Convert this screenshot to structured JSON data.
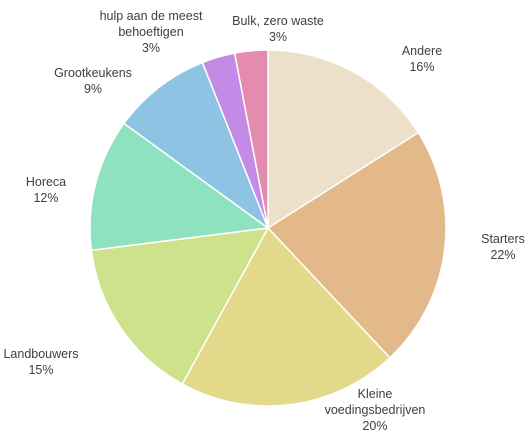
{
  "chart_data": {
    "type": "pie",
    "title": "",
    "start_angle_deg": 0,
    "direction": "clockwise",
    "slices": [
      {
        "label": "Andere",
        "value": 16,
        "value_label": "16%",
        "color": "#EDE0CA"
      },
      {
        "label": "Starters",
        "value": 22,
        "value_label": "22%",
        "color": "#E3B98A"
      },
      {
        "label": "Kleine voedingsbedrijven",
        "value": 20,
        "value_label": "20%",
        "color": "#E2DA8A"
      },
      {
        "label": "Landbouwers",
        "value": 15,
        "value_label": "15%",
        "color": "#CDE28A"
      },
      {
        "label": "Horeca",
        "value": 12,
        "value_label": "12%",
        "color": "#8EE2BF"
      },
      {
        "label": "Grootkeukens",
        "value": 9,
        "value_label": "9%",
        "color": "#8EC3E3"
      },
      {
        "label": "hulp aan de meest behoeftigen",
        "value": 3,
        "value_label": "3%",
        "color": "#C48BE6"
      },
      {
        "label": "Bulk, zero waste",
        "value": 3,
        "value_label": "3%",
        "color": "#E48BAF"
      }
    ],
    "legend": "none",
    "slice_border_color": "#ffffff"
  }
}
